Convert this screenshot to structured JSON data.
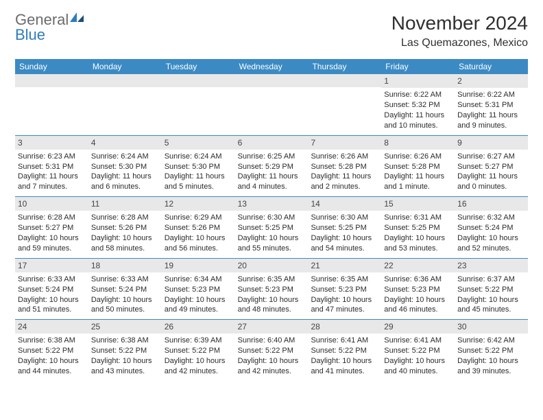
{
  "brand": {
    "general": "General",
    "blue": "Blue"
  },
  "title": "November 2024",
  "location": "Las Quemazones, Mexico",
  "colors": {
    "header_bg": "#3b8ac4",
    "header_text": "#ffffff",
    "daynum_bg": "#e8e8e8",
    "row_border": "#3b8ac4",
    "logo_gray": "#6b6b6b",
    "logo_blue": "#2d7cc1"
  },
  "day_headers": [
    "Sunday",
    "Monday",
    "Tuesday",
    "Wednesday",
    "Thursday",
    "Friday",
    "Saturday"
  ],
  "weeks": [
    [
      {
        "n": "",
        "sr": "",
        "ss": "",
        "dl": ""
      },
      {
        "n": "",
        "sr": "",
        "ss": "",
        "dl": ""
      },
      {
        "n": "",
        "sr": "",
        "ss": "",
        "dl": ""
      },
      {
        "n": "",
        "sr": "",
        "ss": "",
        "dl": ""
      },
      {
        "n": "",
        "sr": "",
        "ss": "",
        "dl": ""
      },
      {
        "n": "1",
        "sr": "Sunrise: 6:22 AM",
        "ss": "Sunset: 5:32 PM",
        "dl": "Daylight: 11 hours and 10 minutes."
      },
      {
        "n": "2",
        "sr": "Sunrise: 6:22 AM",
        "ss": "Sunset: 5:31 PM",
        "dl": "Daylight: 11 hours and 9 minutes."
      }
    ],
    [
      {
        "n": "3",
        "sr": "Sunrise: 6:23 AM",
        "ss": "Sunset: 5:31 PM",
        "dl": "Daylight: 11 hours and 7 minutes."
      },
      {
        "n": "4",
        "sr": "Sunrise: 6:24 AM",
        "ss": "Sunset: 5:30 PM",
        "dl": "Daylight: 11 hours and 6 minutes."
      },
      {
        "n": "5",
        "sr": "Sunrise: 6:24 AM",
        "ss": "Sunset: 5:30 PM",
        "dl": "Daylight: 11 hours and 5 minutes."
      },
      {
        "n": "6",
        "sr": "Sunrise: 6:25 AM",
        "ss": "Sunset: 5:29 PM",
        "dl": "Daylight: 11 hours and 4 minutes."
      },
      {
        "n": "7",
        "sr": "Sunrise: 6:26 AM",
        "ss": "Sunset: 5:28 PM",
        "dl": "Daylight: 11 hours and 2 minutes."
      },
      {
        "n": "8",
        "sr": "Sunrise: 6:26 AM",
        "ss": "Sunset: 5:28 PM",
        "dl": "Daylight: 11 hours and 1 minute."
      },
      {
        "n": "9",
        "sr": "Sunrise: 6:27 AM",
        "ss": "Sunset: 5:27 PM",
        "dl": "Daylight: 11 hours and 0 minutes."
      }
    ],
    [
      {
        "n": "10",
        "sr": "Sunrise: 6:28 AM",
        "ss": "Sunset: 5:27 PM",
        "dl": "Daylight: 10 hours and 59 minutes."
      },
      {
        "n": "11",
        "sr": "Sunrise: 6:28 AM",
        "ss": "Sunset: 5:26 PM",
        "dl": "Daylight: 10 hours and 58 minutes."
      },
      {
        "n": "12",
        "sr": "Sunrise: 6:29 AM",
        "ss": "Sunset: 5:26 PM",
        "dl": "Daylight: 10 hours and 56 minutes."
      },
      {
        "n": "13",
        "sr": "Sunrise: 6:30 AM",
        "ss": "Sunset: 5:25 PM",
        "dl": "Daylight: 10 hours and 55 minutes."
      },
      {
        "n": "14",
        "sr": "Sunrise: 6:30 AM",
        "ss": "Sunset: 5:25 PM",
        "dl": "Daylight: 10 hours and 54 minutes."
      },
      {
        "n": "15",
        "sr": "Sunrise: 6:31 AM",
        "ss": "Sunset: 5:25 PM",
        "dl": "Daylight: 10 hours and 53 minutes."
      },
      {
        "n": "16",
        "sr": "Sunrise: 6:32 AM",
        "ss": "Sunset: 5:24 PM",
        "dl": "Daylight: 10 hours and 52 minutes."
      }
    ],
    [
      {
        "n": "17",
        "sr": "Sunrise: 6:33 AM",
        "ss": "Sunset: 5:24 PM",
        "dl": "Daylight: 10 hours and 51 minutes."
      },
      {
        "n": "18",
        "sr": "Sunrise: 6:33 AM",
        "ss": "Sunset: 5:24 PM",
        "dl": "Daylight: 10 hours and 50 minutes."
      },
      {
        "n": "19",
        "sr": "Sunrise: 6:34 AM",
        "ss": "Sunset: 5:23 PM",
        "dl": "Daylight: 10 hours and 49 minutes."
      },
      {
        "n": "20",
        "sr": "Sunrise: 6:35 AM",
        "ss": "Sunset: 5:23 PM",
        "dl": "Daylight: 10 hours and 48 minutes."
      },
      {
        "n": "21",
        "sr": "Sunrise: 6:35 AM",
        "ss": "Sunset: 5:23 PM",
        "dl": "Daylight: 10 hours and 47 minutes."
      },
      {
        "n": "22",
        "sr": "Sunrise: 6:36 AM",
        "ss": "Sunset: 5:23 PM",
        "dl": "Daylight: 10 hours and 46 minutes."
      },
      {
        "n": "23",
        "sr": "Sunrise: 6:37 AM",
        "ss": "Sunset: 5:22 PM",
        "dl": "Daylight: 10 hours and 45 minutes."
      }
    ],
    [
      {
        "n": "24",
        "sr": "Sunrise: 6:38 AM",
        "ss": "Sunset: 5:22 PM",
        "dl": "Daylight: 10 hours and 44 minutes."
      },
      {
        "n": "25",
        "sr": "Sunrise: 6:38 AM",
        "ss": "Sunset: 5:22 PM",
        "dl": "Daylight: 10 hours and 43 minutes."
      },
      {
        "n": "26",
        "sr": "Sunrise: 6:39 AM",
        "ss": "Sunset: 5:22 PM",
        "dl": "Daylight: 10 hours and 42 minutes."
      },
      {
        "n": "27",
        "sr": "Sunrise: 6:40 AM",
        "ss": "Sunset: 5:22 PM",
        "dl": "Daylight: 10 hours and 42 minutes."
      },
      {
        "n": "28",
        "sr": "Sunrise: 6:41 AM",
        "ss": "Sunset: 5:22 PM",
        "dl": "Daylight: 10 hours and 41 minutes."
      },
      {
        "n": "29",
        "sr": "Sunrise: 6:41 AM",
        "ss": "Sunset: 5:22 PM",
        "dl": "Daylight: 10 hours and 40 minutes."
      },
      {
        "n": "30",
        "sr": "Sunrise: 6:42 AM",
        "ss": "Sunset: 5:22 PM",
        "dl": "Daylight: 10 hours and 39 minutes."
      }
    ]
  ]
}
